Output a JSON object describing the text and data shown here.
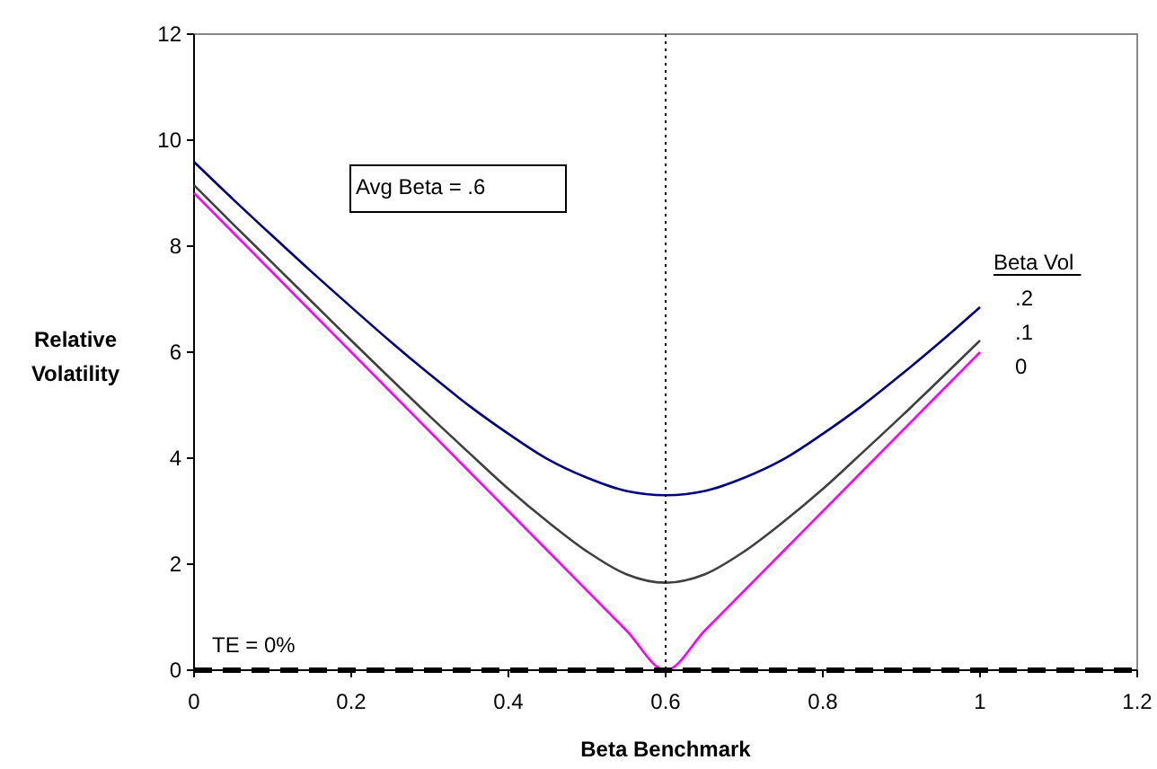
{
  "chart_data": {
    "type": "line",
    "xlabel": "Beta Benchmark",
    "ylabel": "Relative Volatility",
    "legend_title": "Beta Vol",
    "legend": "right",
    "grid": false,
    "marker": "none",
    "line_style": "solid",
    "x": [
      0,
      0.05,
      0.1,
      0.15,
      0.2,
      0.25,
      0.3,
      0.35,
      0.4,
      0.45,
      0.5,
      0.55,
      0.6,
      0.65,
      0.7,
      0.75,
      0.8,
      0.85,
      0.9,
      0.95,
      1
    ],
    "xlim": [
      0,
      1.2
    ],
    "xticks": [
      0,
      0.2,
      0.4,
      0.6,
      0.8,
      1,
      1.2
    ],
    "ylim": [
      0,
      12
    ],
    "yticks": [
      0,
      2,
      4,
      6,
      8,
      10,
      12
    ],
    "series": [
      {
        "name": ".2",
        "color": "#000080",
        "values": [
          9.59,
          8.88,
          8.19,
          7.51,
          6.85,
          6.2,
          5.58,
          4.99,
          4.46,
          3.98,
          3.63,
          3.38,
          3.3,
          3.38,
          3.63,
          3.98,
          4.46,
          4.99,
          5.58,
          6.2,
          6.85
        ]
      },
      {
        "name": ".1",
        "color": "#404040",
        "values": [
          9.15,
          8.41,
          7.68,
          6.95,
          6.22,
          5.5,
          4.79,
          4.1,
          3.42,
          2.8,
          2.24,
          1.81,
          1.65,
          1.81,
          2.24,
          2.8,
          3.42,
          4.1,
          4.79,
          5.5,
          6.22
        ]
      },
      {
        "name": "0",
        "color": "#ff00ff",
        "values": [
          9,
          8.25,
          7.5,
          6.75,
          6,
          5.25,
          4.5,
          3.75,
          3,
          2.25,
          1.5,
          0.75,
          0,
          0.75,
          1.5,
          2.25,
          3,
          3.75,
          4.5,
          5.25,
          6
        ]
      }
    ],
    "ref_lines": [
      {
        "axis": "x",
        "value": 0.6,
        "color": "#000000",
        "line_style": "dotted"
      },
      {
        "axis": "y",
        "value": 0,
        "color": "#000000",
        "line_style": "dashed"
      }
    ],
    "annotations": [
      "Avg Beta = .6",
      "TE = 0%"
    ]
  }
}
